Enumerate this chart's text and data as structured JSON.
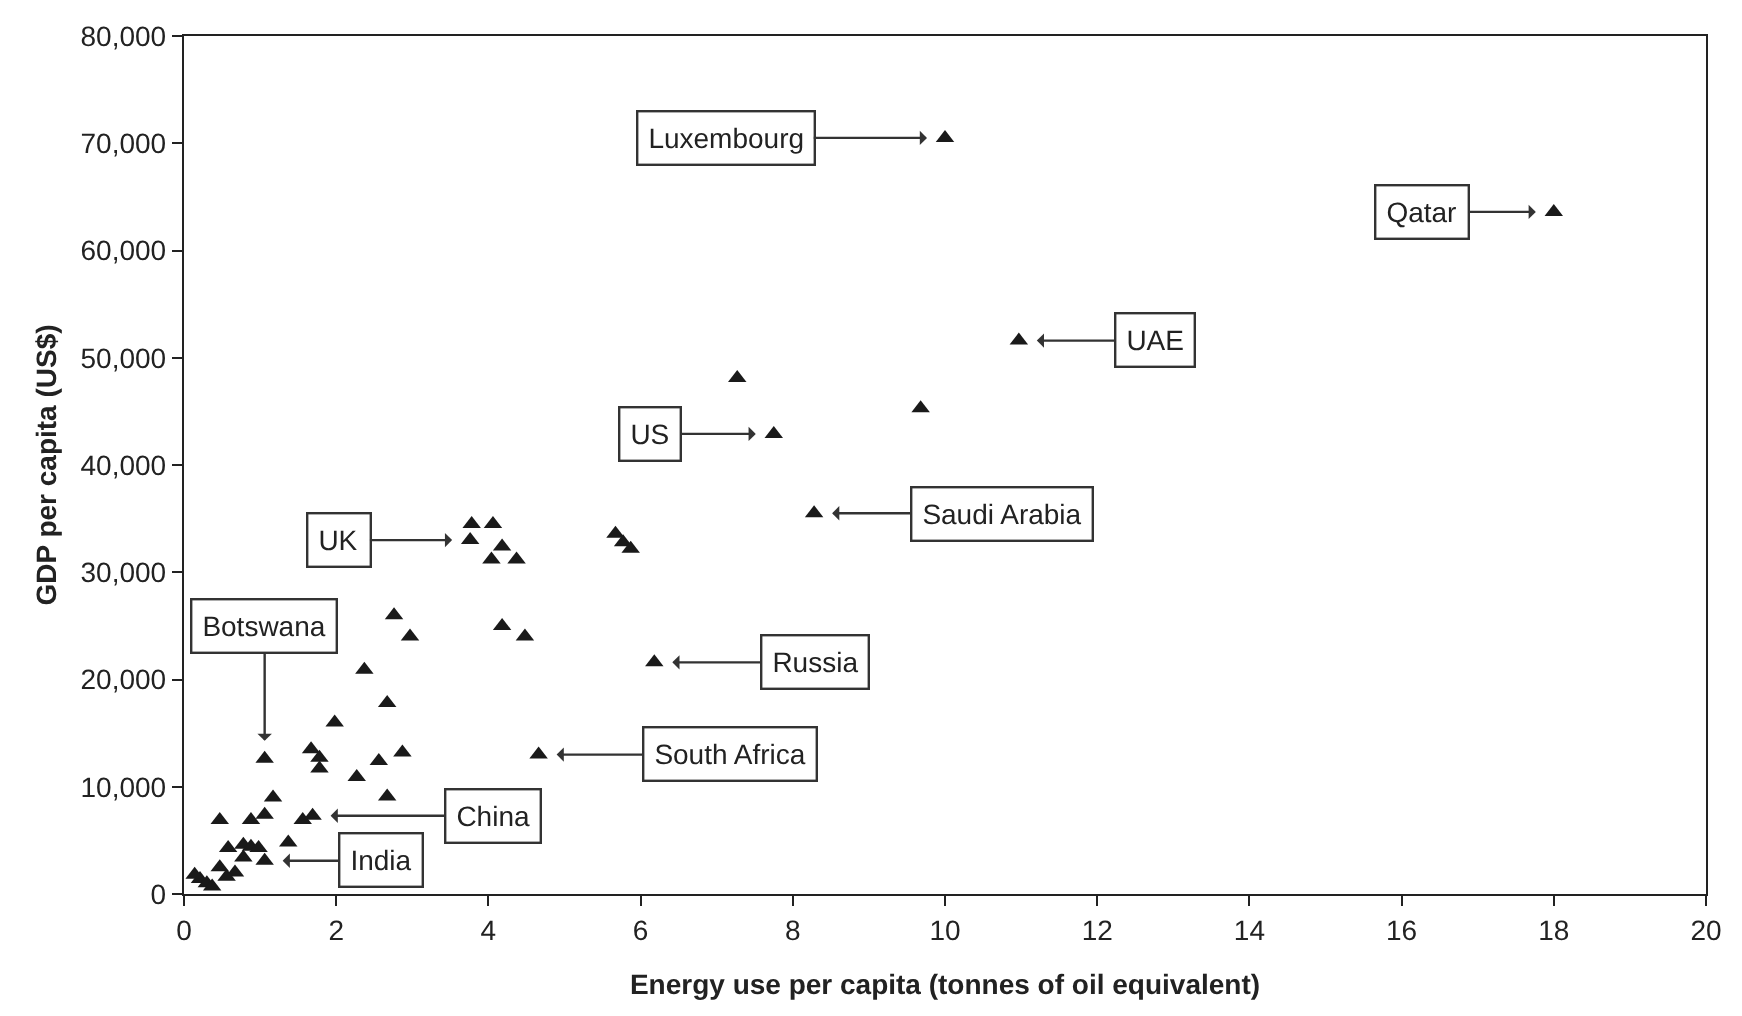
{
  "chart_data": {
    "type": "scatter",
    "xlabel": "Energy use per capita (tonnes of oil equivalent)",
    "ylabel": "GDP per capita (US$)",
    "xlim": [
      0,
      20
    ],
    "xticks": [
      0,
      2,
      4,
      6,
      8,
      10,
      12,
      14,
      16,
      18,
      20
    ],
    "ylim": [
      0,
      80000
    ],
    "yticks": [
      {
        "value": 0,
        "label": "0"
      },
      {
        "value": 10000,
        "label": "10,000"
      },
      {
        "value": 20000,
        "label": "20,000"
      },
      {
        "value": 30000,
        "label": "30,000"
      },
      {
        "value": 40000,
        "label": "40,000"
      },
      {
        "value": 50000,
        "label": "50,000"
      },
      {
        "value": 60000,
        "label": "60,000"
      },
      {
        "value": 70000,
        "label": "70,000"
      },
      {
        "value": 80000,
        "label": "80,000"
      }
    ],
    "marker": "triangle",
    "series": [
      {
        "color": "#1a1a1a",
        "x": [
          10.0,
          18.0,
          10.97,
          7.27,
          7.75,
          9.68,
          8.28,
          3.78,
          4.06,
          3.76,
          4.18,
          4.04,
          4.37,
          5.67,
          5.77,
          5.87,
          6.18,
          2.76,
          2.97,
          4.18,
          4.48,
          2.37,
          2.67,
          1.98,
          1.06,
          1.67,
          1.78,
          1.78,
          2.56,
          2.87,
          2.27,
          2.67,
          4.66,
          1.17,
          1.06,
          0.88,
          0.47,
          1.56,
          1.69,
          1.37,
          0.58,
          0.78,
          0.88,
          0.98,
          1.06,
          0.78,
          0.47,
          0.67,
          0.56,
          0.21,
          0.3,
          0.37,
          0.14
        ],
        "values": [
          70500,
          63600,
          51600,
          48100,
          42900,
          45300,
          35500,
          34500,
          34500,
          33000,
          32400,
          31200,
          31200,
          33600,
          32800,
          32200,
          21600,
          26000,
          24000,
          25000,
          24000,
          20900,
          17800,
          16000,
          12600,
          13500,
          12700,
          11700,
          12400,
          13200,
          10900,
          9100,
          13000,
          9000,
          7400,
          6900,
          6900,
          6900,
          7300,
          4800,
          4300,
          4600,
          4400,
          4300,
          3100,
          3400,
          2500,
          2000,
          1600,
          1400,
          1000,
          700,
          1800
        ]
      }
    ],
    "annotations": [
      {
        "text": "Luxembourg",
        "x": 10.0,
        "y": 70500
      },
      {
        "text": "Qatar",
        "x": 18.0,
        "y": 63600
      },
      {
        "text": "UAE",
        "x": 10.97,
        "y": 51600
      },
      {
        "text": "US",
        "x": 7.75,
        "y": 42900
      },
      {
        "text": "Saudi Arabia",
        "x": 8.28,
        "y": 35500
      },
      {
        "text": "UK",
        "x": 3.76,
        "y": 33000
      },
      {
        "text": "Russia",
        "x": 6.18,
        "y": 21600
      },
      {
        "text": "South Africa",
        "x": 4.66,
        "y": 13000
      },
      {
        "text": "Botswana",
        "x": 1.06,
        "y": 12600
      },
      {
        "text": "China",
        "x": 1.69,
        "y": 7300
      },
      {
        "text": "India",
        "x": 1.06,
        "y": 3100
      }
    ]
  }
}
